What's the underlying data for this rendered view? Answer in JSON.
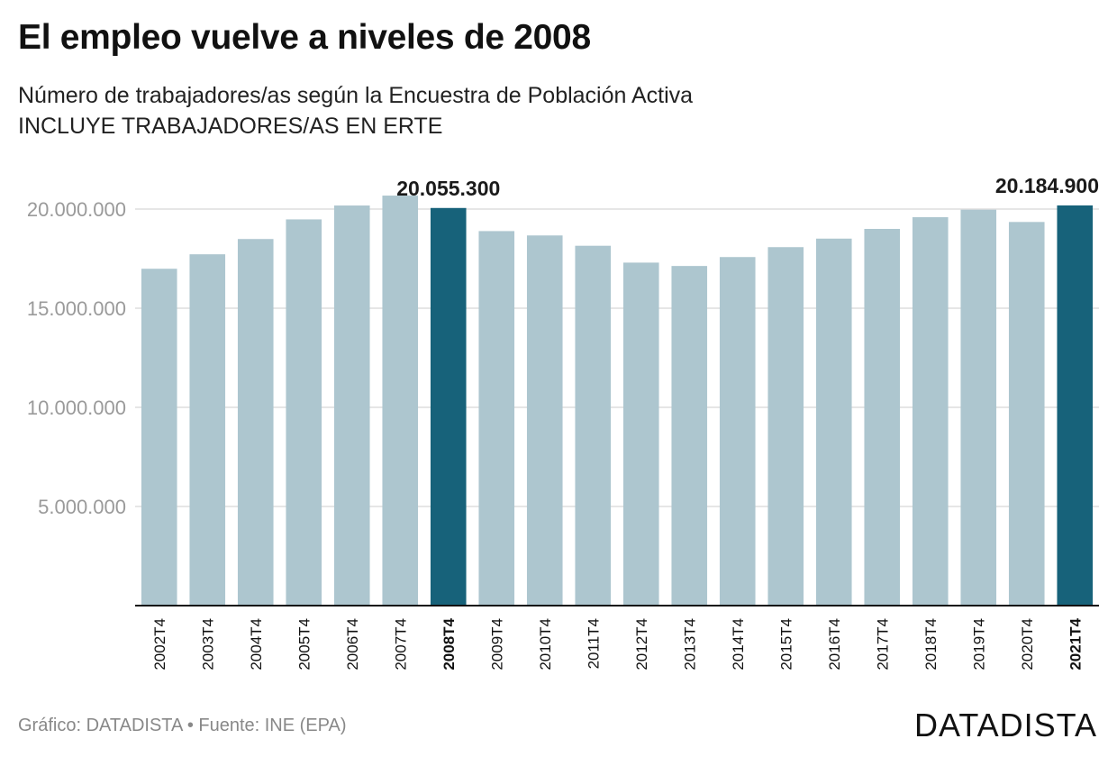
{
  "header": {
    "title": "El empleo vuelve a niveles de 2008",
    "subtitle": "Número de trabajadores/as según la Encuestra de Población Activa",
    "subtitle2": "INCLUYE TRABAJADORES/AS EN ERTE"
  },
  "footer": {
    "source": "Gráfico: DATADISTA • Fuente: INE (EPA)",
    "brand": "DATADISTA"
  },
  "colors": {
    "bar": "#adc6cf",
    "highlight": "#17627a",
    "grid": "#dddddd",
    "axis": "#111111",
    "tick": "#9a9a9a"
  },
  "chart_data": {
    "type": "bar",
    "categories": [
      "2002T4",
      "2003T4",
      "2004T4",
      "2005T4",
      "2006T4",
      "2007T4",
      "2008T4",
      "2009T4",
      "2010T4",
      "2011T4",
      "2012T4",
      "2013T4",
      "2014T4",
      "2015T4",
      "2016T4",
      "2017T4",
      "2018T4",
      "2019T4",
      "2020T4",
      "2021T4"
    ],
    "values": [
      16990000,
      17720000,
      18490000,
      19480000,
      20180000,
      20680000,
      20055300,
      18890000,
      18670000,
      18150000,
      17300000,
      17130000,
      17580000,
      18080000,
      18510000,
      19000000,
      19590000,
      19970000,
      19350000,
      20184900
    ],
    "highlighted": [
      "2008T4",
      "2021T4"
    ],
    "data_labels": [
      {
        "category": "2008T4",
        "text": "20.055.300"
      },
      {
        "category": "2021T4",
        "text": "20.184.900"
      }
    ],
    "y_ticks": [
      {
        "value": 5000000,
        "label": "5.000.000"
      },
      {
        "value": 10000000,
        "label": "10.000.000"
      },
      {
        "value": 15000000,
        "label": "15.000.000"
      },
      {
        "value": 20000000,
        "label": "20.000.000"
      }
    ],
    "ylim": [
      0,
      20000000
    ],
    "grid": true,
    "title": "El empleo vuelve a niveles de 2008",
    "xlabel": "",
    "ylabel": ""
  }
}
